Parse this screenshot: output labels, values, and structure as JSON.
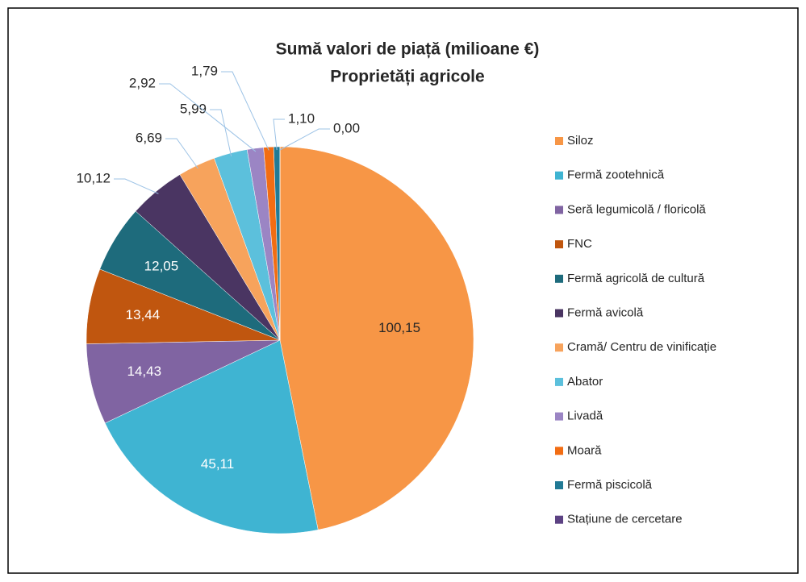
{
  "chart_data": {
    "type": "pie",
    "title": "Sumă valori de piață (milioane €)",
    "subtitle": "Proprietăți agricole",
    "categories": [
      "Siloz",
      "Fermă zootehnică",
      "Seră legumicolă / floricolă",
      "FNC",
      "Fermă agricolă de cultură",
      "Fermă avicolă",
      "Cramă/ Centru de vinificație",
      "Abator",
      "Livadă",
      "Moară",
      "Fermă piscicolă",
      "Stațiune de cercetare"
    ],
    "values": [
      100.15,
      45.11,
      14.43,
      13.44,
      12.05,
      10.12,
      6.69,
      5.99,
      2.92,
      1.79,
      1.1,
      0.0
    ],
    "value_labels": [
      "100,15",
      "45,11",
      "14,43",
      "13,44",
      "12,05",
      "10,12",
      "6,69",
      "5,99",
      "2,92",
      "1,79",
      "1,10",
      "0,00"
    ],
    "colors": [
      "#f79646",
      "#3fb4d2",
      "#8064a2",
      "#c0560f",
      "#1e6b7c",
      "#4a3562",
      "#f7a35c",
      "#5cc0dc",
      "#9b85c4",
      "#f26d13",
      "#217a95",
      "#5c4283"
    ],
    "legend": "right"
  }
}
